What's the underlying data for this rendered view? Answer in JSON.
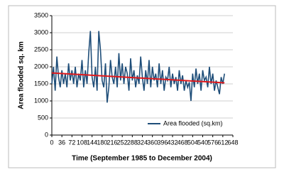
{
  "chart_data": {
    "type": "line",
    "x_label": "Time (September 1985 to December 2004)",
    "y_label": "Area flooded sq. km",
    "xlim": [
      0,
      648
    ],
    "xticks": [
      0,
      36,
      72,
      108,
      144,
      180,
      216,
      252,
      288,
      324,
      360,
      396,
      432,
      468,
      504,
      540,
      576,
      612,
      648
    ],
    "ylim": [
      0,
      3500
    ],
    "yticks": [
      0,
      500,
      1000,
      1500,
      2000,
      2500,
      3000,
      3500
    ],
    "grid": true,
    "legend": "lower right",
    "series": [
      {
        "name": "Area flooded (sq.km)",
        "color": "#1f4e79",
        "x": [
          0,
          6,
          12,
          18,
          24,
          30,
          36,
          42,
          48,
          54,
          60,
          66,
          72,
          78,
          84,
          90,
          96,
          102,
          108,
          114,
          120,
          126,
          132,
          138,
          144,
          150,
          156,
          162,
          168,
          174,
          180,
          186,
          192,
          198,
          204,
          210,
          216,
          222,
          228,
          234,
          240,
          246,
          252,
          258,
          264,
          270,
          276,
          282,
          288,
          294,
          300,
          306,
          312,
          318,
          324,
          330,
          336,
          342,
          348,
          354,
          360,
          366,
          372,
          378,
          384,
          390,
          396,
          402,
          408,
          414,
          420,
          426,
          432,
          438,
          444,
          450,
          456,
          462,
          468,
          474,
          480,
          486,
          492,
          498,
          504,
          510,
          516,
          522,
          528,
          534,
          540,
          546,
          552,
          558,
          564,
          570,
          576,
          582,
          588,
          594,
          600,
          606,
          612,
          618
        ],
        "values": [
          1500,
          2000,
          1300,
          2300,
          1700,
          1400,
          1900,
          1500,
          1800,
          1400,
          2100,
          1600,
          1900,
          1500,
          2000,
          1400,
          1800,
          1600,
          2200,
          1400,
          1900,
          1500,
          2400,
          3050,
          1700,
          1400,
          2000,
          1300,
          3050,
          2500,
          1600,
          1400,
          2100,
          950,
          1400,
          2200,
          1700,
          1500,
          2000,
          1400,
          2400,
          1600,
          2100,
          1500,
          2000,
          1800,
          1300,
          2250,
          1600,
          1900,
          1400,
          1750,
          1500,
          2300,
          1700,
          1300,
          1900,
          1500,
          2200,
          1400,
          2000,
          1600,
          1800,
          1400,
          2100,
          1500,
          1900,
          1300,
          1700,
          1600,
          2000,
          1400,
          1800,
          1500,
          1700,
          1300,
          1900,
          1500,
          1750,
          1300,
          1600,
          1400,
          1550,
          1000,
          1800,
          1400,
          1950,
          1500,
          1800,
          1300,
          1900,
          1600,
          1700,
          1400,
          2000,
          1500,
          1800,
          1300,
          1600,
          1400,
          1200,
          1700,
          1500,
          1800
        ]
      },
      {
        "color": "#e0191c",
        "x": [
          0,
          618
        ],
        "values": [
          1820,
          1530
        ]
      }
    ]
  }
}
